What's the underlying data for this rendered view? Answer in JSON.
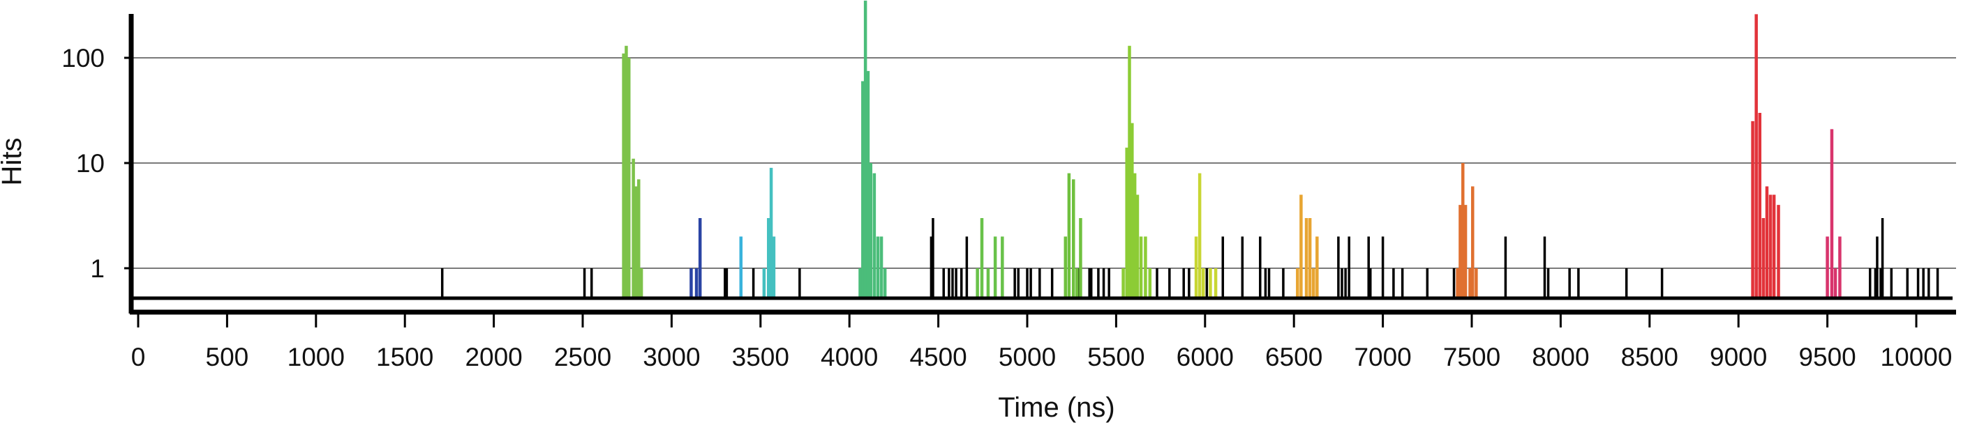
{
  "chart_data": {
    "type": "bar",
    "xlabel": "Time (ns)",
    "ylabel": "Hits",
    "x_scale": "linear",
    "y_scale": "log",
    "xlim": [
      0,
      10200
    ],
    "ylim": [
      0.5,
      350
    ],
    "x_ticks": [
      0,
      500,
      1000,
      1500,
      2000,
      2500,
      3000,
      3500,
      4000,
      4500,
      5000,
      5500,
      6000,
      6500,
      7000,
      7500,
      8000,
      8500,
      9000,
      9500,
      10000
    ],
    "x_tick_labels": [
      "0",
      "500",
      "1000",
      "1500",
      "2000",
      "2500",
      "3000",
      "3500",
      "4000",
      "4500",
      "5000",
      "5500",
      "6000",
      "6500",
      "7000",
      "7500",
      "8000",
      "8500",
      "9000",
      "9500",
      "10000"
    ],
    "y_ticks": [
      1,
      10,
      100
    ],
    "y_tick_labels": [
      "1",
      "10",
      "100"
    ],
    "grid": "horizontal",
    "legend": "none",
    "series": [
      {
        "color": "#000000",
        "points": [
          [
            1710,
            1
          ],
          [
            2510,
            1
          ],
          [
            2550,
            1
          ],
          [
            3300,
            1
          ],
          [
            3310,
            1
          ],
          [
            3460,
            1
          ],
          [
            3720,
            1
          ],
          [
            4460,
            2
          ],
          [
            4470,
            3
          ],
          [
            4530,
            1
          ],
          [
            4560,
            1
          ],
          [
            4580,
            1
          ],
          [
            4600,
            1
          ],
          [
            4630,
            1
          ],
          [
            4660,
            2
          ],
          [
            4930,
            1
          ],
          [
            4950,
            1
          ],
          [
            5000,
            1
          ],
          [
            5020,
            1
          ],
          [
            5070,
            1
          ],
          [
            5140,
            1
          ],
          [
            5290,
            1
          ],
          [
            5350,
            1
          ],
          [
            5360,
            1
          ],
          [
            5400,
            1
          ],
          [
            5430,
            1
          ],
          [
            5460,
            1
          ],
          [
            5640,
            1
          ],
          [
            5730,
            1
          ],
          [
            5800,
            1
          ],
          [
            5880,
            1
          ],
          [
            5910,
            1
          ],
          [
            6010,
            1
          ],
          [
            6100,
            2
          ],
          [
            6210,
            2
          ],
          [
            6310,
            2
          ],
          [
            6340,
            1
          ],
          [
            6360,
            1
          ],
          [
            6440,
            1
          ],
          [
            6750,
            2
          ],
          [
            6770,
            1
          ],
          [
            6790,
            1
          ],
          [
            6810,
            2
          ],
          [
            6920,
            2
          ],
          [
            6930,
            1
          ],
          [
            7000,
            2
          ],
          [
            7060,
            1
          ],
          [
            7110,
            1
          ],
          [
            7250,
            1
          ],
          [
            7400,
            1
          ],
          [
            7690,
            2
          ],
          [
            7910,
            2
          ],
          [
            7930,
            1
          ],
          [
            8050,
            1
          ],
          [
            8100,
            1
          ],
          [
            8370,
            1
          ],
          [
            8570,
            1
          ],
          [
            9740,
            1
          ],
          [
            9770,
            1
          ],
          [
            9780,
            2
          ],
          [
            9800,
            1
          ],
          [
            9810,
            3
          ],
          [
            9860,
            1
          ],
          [
            9950,
            1
          ],
          [
            10010,
            1
          ],
          [
            10040,
            1
          ],
          [
            10070,
            1
          ],
          [
            10120,
            1
          ]
        ]
      },
      {
        "color": "#7dc24a",
        "points": [
          [
            2730,
            110
          ],
          [
            2745,
            130
          ],
          [
            2760,
            100
          ],
          [
            2785,
            11
          ],
          [
            2800,
            6
          ],
          [
            2815,
            7
          ],
          [
            2830,
            1
          ]
        ]
      },
      {
        "color": "#2a44a4",
        "points": [
          [
            3110,
            1
          ],
          [
            3140,
            1
          ],
          [
            3160,
            3
          ]
        ]
      },
      {
        "color": "#38b3dc",
        "points": [
          [
            3390,
            2
          ]
        ]
      },
      {
        "color": "#44c0c0",
        "points": [
          [
            3520,
            1
          ],
          [
            3545,
            3
          ],
          [
            3560,
            9
          ],
          [
            3575,
            2
          ]
        ]
      },
      {
        "color": "#4bbd7a",
        "points": [
          [
            4060,
            1
          ],
          [
            4075,
            60
          ],
          [
            4090,
            350
          ],
          [
            4105,
            75
          ],
          [
            4120,
            10
          ],
          [
            4140,
            8
          ],
          [
            4160,
            2
          ],
          [
            4180,
            2
          ],
          [
            4200,
            1
          ]
        ]
      },
      {
        "color": "#69c24a",
        "points": [
          [
            4720,
            1
          ],
          [
            4745,
            3
          ],
          [
            4780,
            1
          ],
          [
            4820,
            2
          ],
          [
            4860,
            2
          ]
        ]
      },
      {
        "color": "#6fc03e",
        "points": [
          [
            5215,
            2
          ],
          [
            5235,
            8
          ],
          [
            5260,
            7
          ],
          [
            5280,
            1
          ],
          [
            5300,
            3
          ]
        ]
      },
      {
        "color": "#8ccc35",
        "points": [
          [
            5540,
            1
          ],
          [
            5560,
            14
          ],
          [
            5575,
            130
          ],
          [
            5590,
            24
          ],
          [
            5605,
            8
          ],
          [
            5620,
            5
          ],
          [
            5640,
            2
          ],
          [
            5665,
            2
          ],
          [
            5690,
            1
          ]
        ]
      },
      {
        "color": "#c8d633",
        "points": [
          [
            5950,
            2
          ],
          [
            5970,
            8
          ],
          [
            5990,
            1
          ],
          [
            6030,
            1
          ],
          [
            6060,
            1
          ]
        ]
      },
      {
        "color": "#e8a532",
        "points": [
          [
            6520,
            1
          ],
          [
            6540,
            5
          ],
          [
            6570,
            3
          ],
          [
            6590,
            3
          ],
          [
            6610,
            1
          ],
          [
            6630,
            2
          ]
        ]
      },
      {
        "color": "#e07030",
        "points": [
          [
            7420,
            1
          ],
          [
            7435,
            4
          ],
          [
            7450,
            10
          ],
          [
            7465,
            4
          ],
          [
            7490,
            1
          ],
          [
            7505,
            6
          ],
          [
            7525,
            1
          ]
        ]
      },
      {
        "color": "#e2333a",
        "points": [
          [
            9080,
            25
          ],
          [
            9100,
            260
          ],
          [
            9120,
            30
          ],
          [
            9140,
            3
          ],
          [
            9160,
            6
          ],
          [
            9180,
            5
          ],
          [
            9200,
            5
          ],
          [
            9225,
            4
          ]
        ]
      },
      {
        "color": "#d8346c",
        "points": [
          [
            9500,
            2
          ],
          [
            9525,
            21
          ],
          [
            9545,
            1
          ],
          [
            9570,
            2
          ]
        ]
      }
    ]
  }
}
